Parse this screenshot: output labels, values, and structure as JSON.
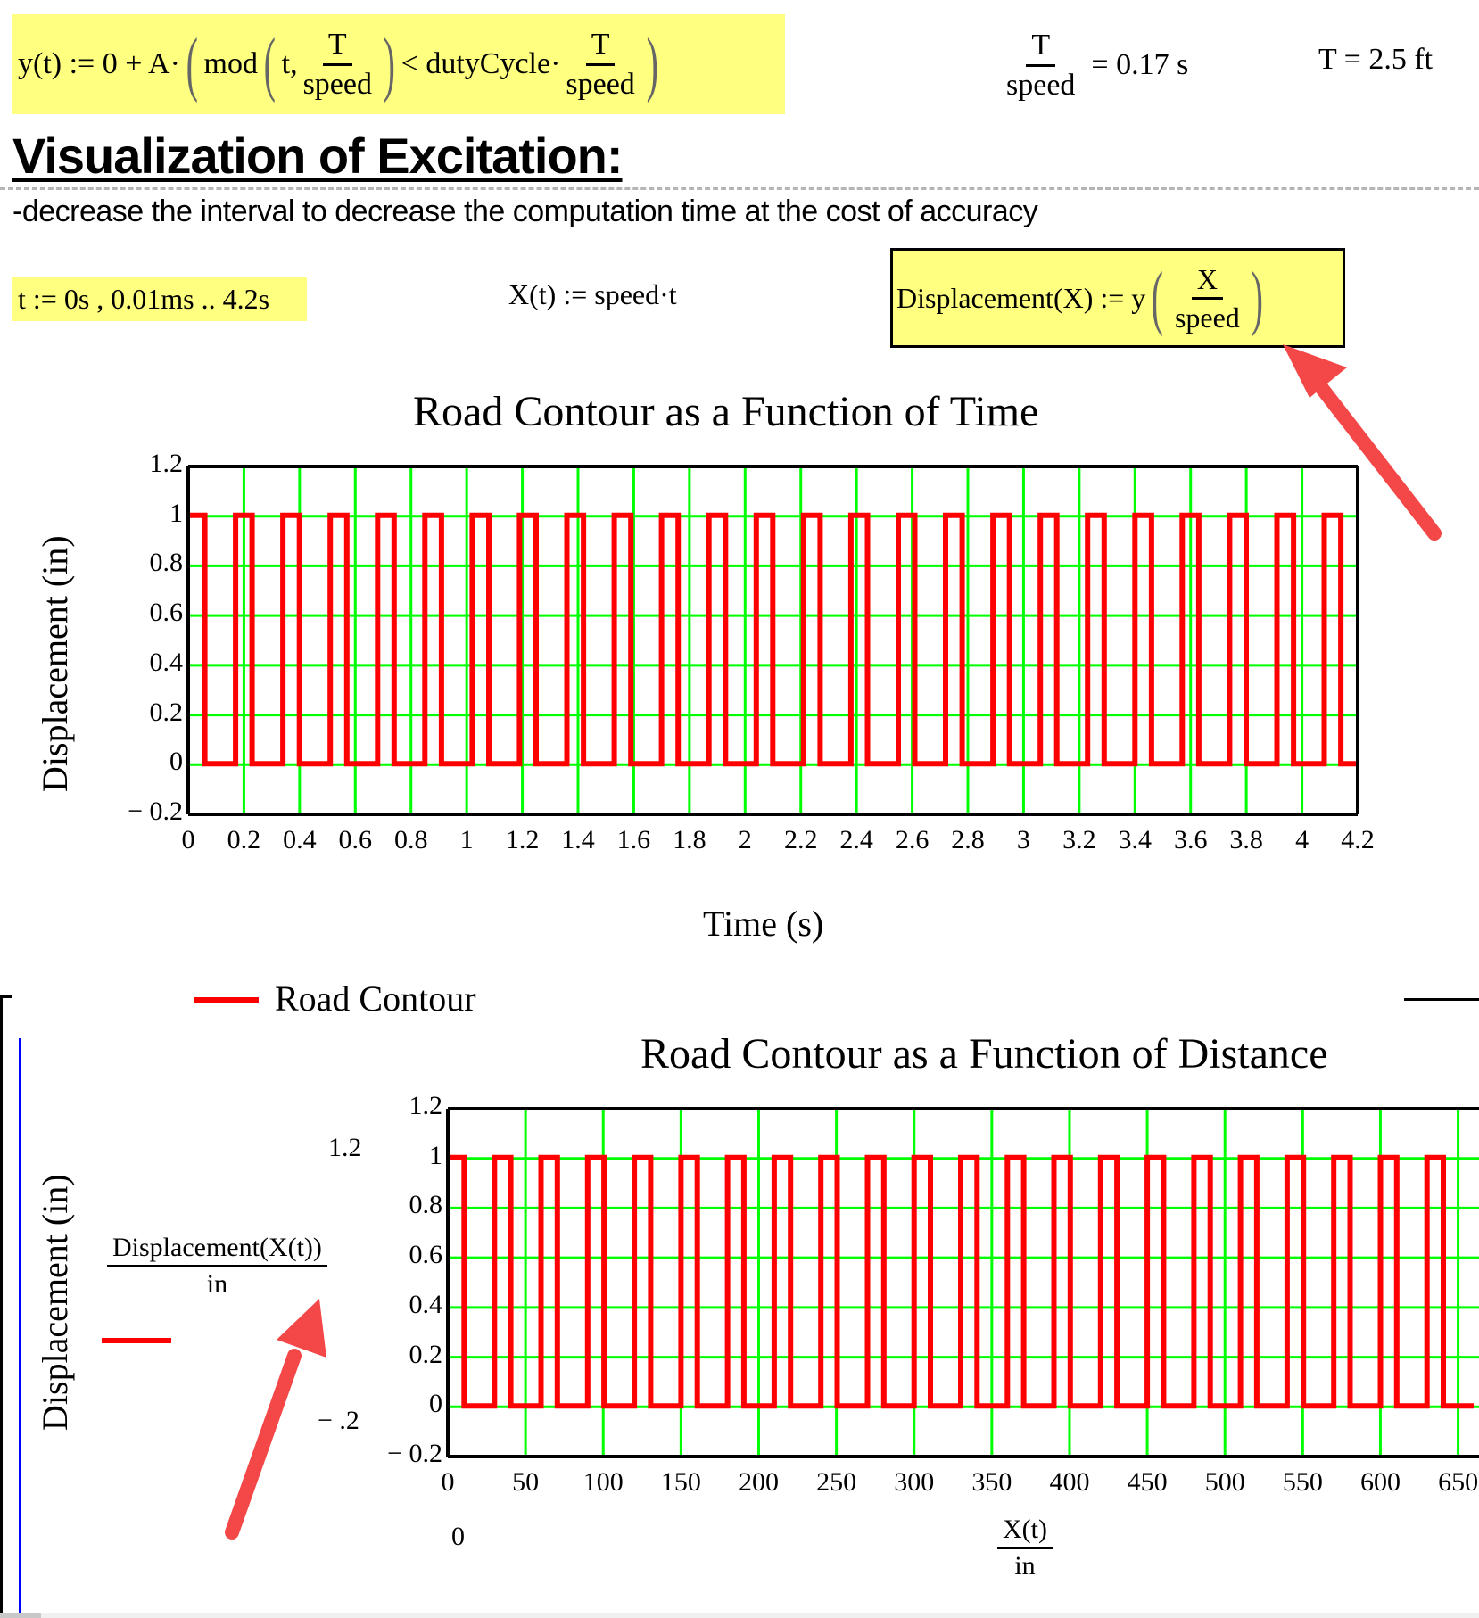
{
  "equations": {
    "y_def": {
      "lhs": "y(t) := 0 + A·",
      "mod_label": "mod",
      "mod_arg1": "t,",
      "frac1_num": "T",
      "frac1_den": "speed",
      "lt": "< dutyCycle·",
      "frac2_num": "T",
      "frac2_den": "speed"
    },
    "period_eval": {
      "num": "T",
      "den": "speed",
      "result": "= 0.17 s"
    },
    "T_eval": "T = 2.5 ft",
    "t_range": "t := 0s , 0.01ms .. 4.2s",
    "X_def": "X(t) := speed·t",
    "displacement_def": {
      "lhs": "Displacement(X) := y",
      "num": "X",
      "den": "speed"
    }
  },
  "section": {
    "heading": "Visualization of Excitation:",
    "note": "-decrease the interval to decrease the computation time at the cost of accuracy"
  },
  "colors": {
    "highlight": "#ffff80",
    "trace": "#ff0000",
    "grid": "#00ff00",
    "frame": "#000000",
    "annotation_arrow": "#f44848",
    "region_bar": "#0000ff"
  },
  "chart_data": [
    {
      "type": "line",
      "title": "Road Contour as a Function of Time",
      "xlabel": "Time (s)",
      "ylabel": "Displacement (in)",
      "xlim": [
        0,
        4.2
      ],
      "ylim": [
        -0.2,
        1.2
      ],
      "x_ticks": [
        "0",
        "0.2",
        "0.4",
        "0.6",
        "0.8",
        "1",
        "1.2",
        "1.4",
        "1.6",
        "1.8",
        "2",
        "2.2",
        "2.4",
        "2.6",
        "2.8",
        "3",
        "3.2",
        "3.4",
        "3.6",
        "3.8",
        "4",
        "4.2"
      ],
      "y_ticks": [
        "1.2",
        "1",
        "0.8",
        "0.6",
        "0.4",
        "0.2",
        "0",
        "− 0.2"
      ],
      "grid": true,
      "legend": {
        "position": "below",
        "entries": [
          "Road Contour"
        ]
      },
      "series": [
        {
          "name": "Road Contour",
          "kind": "square_wave",
          "period": 0.17,
          "duty": 0.35,
          "low": 0,
          "high": 1,
          "x_start": 0,
          "x_end": 4.2
        }
      ]
    },
    {
      "type": "line",
      "title": "Road Contour as a Function of Distance",
      "xlabel_num": "X(t)",
      "xlabel_den": "in",
      "ylabel": "Displacement (in)",
      "y_expr_num": "Displacement(X(t))",
      "y_expr_den": "in",
      "y_limit_top": "1.2",
      "y_limit_bottom": "− .2",
      "x_limit_left": "0",
      "xlim": [
        0,
        660
      ],
      "ylim": [
        -0.2,
        1.2
      ],
      "x_ticks": [
        "0",
        "50",
        "100",
        "150",
        "200",
        "250",
        "300",
        "350",
        "400",
        "450",
        "500",
        "550",
        "600",
        "650"
      ],
      "y_ticks": [
        "1.2",
        "1",
        "0.8",
        "0.6",
        "0.4",
        "0.2",
        "0",
        "− 0.2"
      ],
      "grid": true,
      "series": [
        {
          "name": "Road Contour",
          "kind": "square_wave",
          "period": 30,
          "duty": 0.35,
          "low": 0,
          "high": 1,
          "x_start": 0,
          "x_end": 660
        }
      ]
    }
  ],
  "legend": {
    "label": "Road Contour"
  }
}
